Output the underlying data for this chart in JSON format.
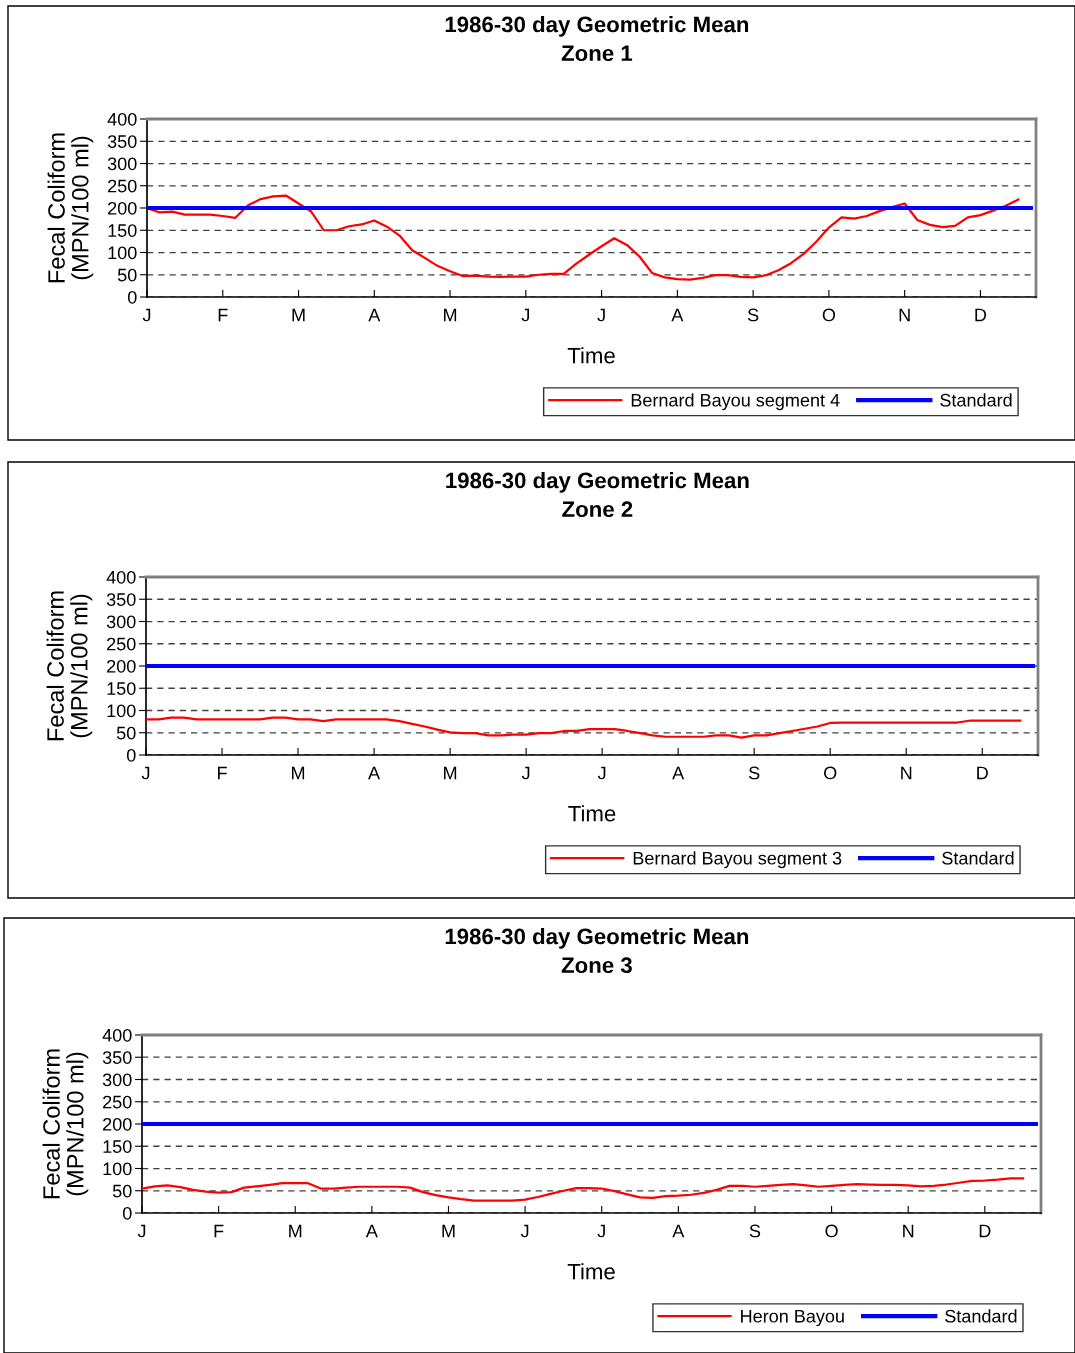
{
  "chart_data": [
    {
      "type": "line",
      "title": "1986-30 day Geometric Mean\nZone 1",
      "xlabel": "Time",
      "ylabel": "Fecal Coliform\n(MPN/100 ml)",
      "categories": [
        "J",
        null,
        null,
        null,
        null,
        null,
        "F",
        null,
        null,
        null,
        null,
        null,
        "M",
        null,
        null,
        null,
        null,
        null,
        "A",
        null,
        null,
        null,
        null,
        null,
        "M",
        null,
        null,
        null,
        null,
        null,
        "J",
        null,
        null,
        null,
        null,
        null,
        "J",
        null,
        null,
        null,
        null,
        null,
        "A",
        null,
        null,
        null,
        null,
        null,
        "S",
        null,
        null,
        null,
        null,
        null,
        "O",
        null,
        null,
        null,
        null,
        null,
        "N",
        null,
        null,
        null,
        null,
        null,
        "D",
        null,
        null,
        null,
        null
      ],
      "ylim": [
        0,
        400
      ],
      "yticks": [
        0,
        50,
        100,
        150,
        200,
        250,
        300,
        350,
        400
      ],
      "grid": "y",
      "legend": "bottom right",
      "series": [
        {
          "name": "Bernard Bayou segment 4",
          "color": "#ff0000",
          "values": [
            200,
            190,
            192,
            185,
            185,
            185,
            182,
            178,
            206,
            220,
            226,
            228,
            210,
            192,
            150,
            150,
            159,
            163,
            172,
            158,
            138,
            105,
            88,
            70,
            58,
            47,
            48,
            46,
            45,
            46,
            46,
            50,
            52,
            52,
            75,
            95,
            114,
            132,
            117,
            91,
            54,
            44,
            40,
            39,
            43,
            49,
            49,
            45,
            44,
            49,
            60,
            76,
            97,
            124,
            156,
            179,
            176,
            182,
            193,
            202,
            210,
            173,
            162,
            157,
            160,
            179,
            184,
            194,
            205,
            219,
            null
          ]
        },
        {
          "name": "Standard",
          "color": "#0000ff",
          "values": [
            200,
            200,
            200,
            200,
            200,
            200,
            200,
            200,
            200,
            200,
            200,
            200,
            200,
            200,
            200,
            200,
            200,
            200,
            200,
            200,
            200,
            200,
            200,
            200,
            200,
            200,
            200,
            200,
            200,
            200,
            200,
            200,
            200,
            200,
            200,
            200,
            200,
            200,
            200,
            200,
            200,
            200,
            200,
            200,
            200,
            200,
            200,
            200,
            200,
            200,
            200,
            200,
            200,
            200,
            200,
            200,
            200,
            200,
            200,
            200,
            200,
            200,
            200,
            200,
            200,
            200,
            200,
            200,
            200,
            200,
            200
          ]
        }
      ]
    },
    {
      "type": "line",
      "title": "1986-30 day Geometric Mean\nZone 2",
      "xlabel": "Time",
      "ylabel": "Fecal Coliform\n(MPN/100 ml)",
      "categories": [
        "J",
        null,
        null,
        null,
        null,
        null,
        "F",
        null,
        null,
        null,
        null,
        null,
        "M",
        null,
        null,
        null,
        null,
        null,
        "A",
        null,
        null,
        null,
        null,
        null,
        "M",
        null,
        null,
        null,
        null,
        null,
        "J",
        null,
        null,
        null,
        null,
        null,
        "J",
        null,
        null,
        null,
        null,
        null,
        "A",
        null,
        null,
        null,
        null,
        null,
        "S",
        null,
        null,
        null,
        null,
        null,
        "O",
        null,
        null,
        null,
        null,
        null,
        "N",
        null,
        null,
        null,
        null,
        null,
        "D",
        null,
        null,
        null,
        null
      ],
      "ylim": [
        0,
        400
      ],
      "yticks": [
        0,
        50,
        100,
        150,
        200,
        250,
        300,
        350,
        400
      ],
      "grid": "y",
      "legend": "bottom right",
      "series": [
        {
          "name": "Bernard Bayou segment 3",
          "color": "#ff0000",
          "values": [
            80,
            80,
            84,
            84,
            80,
            80,
            80,
            80,
            80,
            80,
            84,
            84,
            80,
            80,
            76,
            80,
            80,
            80,
            80,
            80,
            76,
            70,
            64,
            57,
            51,
            49,
            49,
            44,
            44,
            46,
            46,
            49,
            49,
            54,
            54,
            58,
            58,
            58,
            54,
            49,
            44,
            41,
            41,
            41,
            41,
            44,
            44,
            39,
            44,
            44,
            49,
            54,
            59,
            64,
            72,
            73,
            73,
            73,
            73,
            73,
            73,
            73,
            73,
            73,
            73,
            77,
            77,
            77,
            77,
            77,
            null
          ]
        },
        {
          "name": "Standard",
          "color": "#0000ff",
          "values": [
            200,
            200,
            200,
            200,
            200,
            200,
            200,
            200,
            200,
            200,
            200,
            200,
            200,
            200,
            200,
            200,
            200,
            200,
            200,
            200,
            200,
            200,
            200,
            200,
            200,
            200,
            200,
            200,
            200,
            200,
            200,
            200,
            200,
            200,
            200,
            200,
            200,
            200,
            200,
            200,
            200,
            200,
            200,
            200,
            200,
            200,
            200,
            200,
            200,
            200,
            200,
            200,
            200,
            200,
            200,
            200,
            200,
            200,
            200,
            200,
            200,
            200,
            200,
            200,
            200,
            200,
            200,
            200,
            200,
            200,
            200
          ]
        }
      ]
    },
    {
      "type": "line",
      "title": "1986-30 day Geometric Mean\nZone 3",
      "xlabel": "Time",
      "ylabel": "Fecal Coliform\n(MPN/100 ml)",
      "categories": [
        "J",
        null,
        null,
        null,
        null,
        null,
        "F",
        null,
        null,
        null,
        null,
        null,
        "M",
        null,
        null,
        null,
        null,
        null,
        "A",
        null,
        null,
        null,
        null,
        null,
        "M",
        null,
        null,
        null,
        null,
        null,
        "J",
        null,
        null,
        null,
        null,
        null,
        "J",
        null,
        null,
        null,
        null,
        null,
        "A",
        null,
        null,
        null,
        null,
        null,
        "S",
        null,
        null,
        null,
        null,
        null,
        "O",
        null,
        null,
        null,
        null,
        null,
        "N",
        null,
        null,
        null,
        null,
        null,
        "D",
        null,
        null,
        null,
        null
      ],
      "ylim": [
        0,
        400
      ],
      "yticks": [
        0,
        50,
        100,
        150,
        200,
        250,
        300,
        350,
        400
      ],
      "grid": "y",
      "legend": "bottom right",
      "series": [
        {
          "name": "Heron Bayou",
          "color": "#ff0000",
          "values": [
            55,
            60,
            62,
            58,
            52,
            48,
            46,
            47,
            57,
            60,
            63,
            67,
            67,
            67,
            55,
            55,
            57,
            59,
            59,
            59,
            59,
            57,
            47,
            40,
            35,
            31,
            28,
            28,
            28,
            28,
            30,
            36,
            43,
            50,
            56,
            56,
            55,
            49,
            42,
            35,
            34,
            38,
            39,
            41,
            45,
            52,
            61,
            61,
            59,
            61,
            63,
            65,
            62,
            59,
            61,
            63,
            65,
            64,
            63,
            63,
            62,
            60,
            61,
            64,
            68,
            72,
            73,
            75,
            78,
            78,
            null
          ]
        },
        {
          "name": "Standard",
          "color": "#0000ff",
          "values": [
            200,
            200,
            200,
            200,
            200,
            200,
            200,
            200,
            200,
            200,
            200,
            200,
            200,
            200,
            200,
            200,
            200,
            200,
            200,
            200,
            200,
            200,
            200,
            200,
            200,
            200,
            200,
            200,
            200,
            200,
            200,
            200,
            200,
            200,
            200,
            200,
            200,
            200,
            200,
            200,
            200,
            200,
            200,
            200,
            200,
            200,
            200,
            200,
            200,
            200,
            200,
            200,
            200,
            200,
            200,
            200,
            200,
            200,
            200,
            200,
            200,
            200,
            200,
            200,
            200,
            200,
            200,
            200,
            200,
            200,
            200
          ]
        }
      ]
    }
  ]
}
